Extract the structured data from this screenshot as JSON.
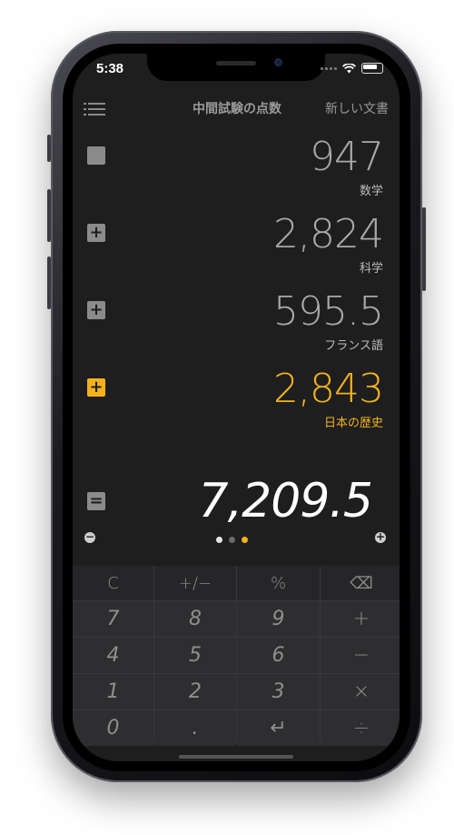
{
  "status": {
    "time": "5:38"
  },
  "topbar": {
    "title": "中間試験の点数",
    "new_doc": "新しい文書"
  },
  "rows": [
    {
      "op": "",
      "value": "947",
      "label": "数学"
    },
    {
      "op": "+",
      "value": "2,824",
      "label": "科学"
    },
    {
      "op": "+",
      "value": "595.5",
      "label": "フランス語"
    },
    {
      "op": "+",
      "value": "2,843",
      "label": "日本の歴史"
    }
  ],
  "total": {
    "op": "=",
    "value": "7,209.5"
  },
  "zoom": {
    "minus": "−",
    "plus": "+"
  },
  "colors": {
    "accent": "#f3b21b",
    "background": "#1e1e1f",
    "text_dim": "#a9a9a9"
  },
  "keypad": {
    "row1": [
      "C",
      "+/−",
      "%",
      "⌫"
    ],
    "row2": [
      "7",
      "8",
      "9",
      "+"
    ],
    "row3": [
      "4",
      "5",
      "6",
      "−"
    ],
    "row4": [
      "1",
      "2",
      "3",
      "×"
    ],
    "row5": [
      "0",
      ".",
      "↵",
      "÷"
    ]
  }
}
